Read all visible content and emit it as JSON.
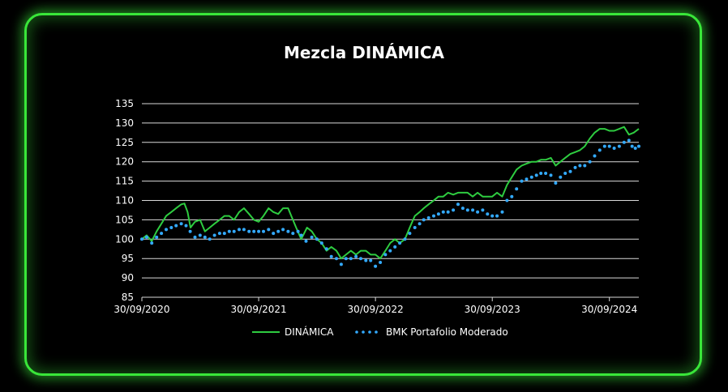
{
  "chart_data": {
    "type": "line",
    "title": "Mezcla DINÁMICA",
    "xlabel": "",
    "ylabel": "",
    "ylim": [
      85,
      135
    ],
    "yticks": [
      85,
      90,
      95,
      100,
      105,
      110,
      115,
      120,
      125,
      130,
      135
    ],
    "xlim": [
      "2020-09-30",
      "2024-12-31"
    ],
    "xticks": [
      "30/09/2020",
      "30/09/2021",
      "30/09/2022",
      "30/09/2023",
      "30/09/2024"
    ],
    "grid": "horizontal",
    "legend": "bottom",
    "series": [
      {
        "name": "DINÁMICA",
        "style": "solid-line",
        "color": "#2ecc40",
        "points": [
          [
            "2020-09-30",
            100
          ],
          [
            "2020-10-15",
            101
          ],
          [
            "2020-10-31",
            99.5
          ],
          [
            "2020-11-15",
            102
          ],
          [
            "2020-11-30",
            104
          ],
          [
            "2020-12-15",
            106
          ],
          [
            "2020-12-31",
            107
          ],
          [
            "2021-01-15",
            108
          ],
          [
            "2021-01-31",
            109
          ],
          [
            "2021-02-10",
            109.2
          ],
          [
            "2021-02-20",
            107
          ],
          [
            "2021-03-01",
            103
          ],
          [
            "2021-03-15",
            104.5
          ],
          [
            "2021-03-31",
            105
          ],
          [
            "2021-04-15",
            102
          ],
          [
            "2021-04-30",
            103
          ],
          [
            "2021-05-15",
            104
          ],
          [
            "2021-05-31",
            105
          ],
          [
            "2021-06-15",
            106
          ],
          [
            "2021-06-30",
            106
          ],
          [
            "2021-07-15",
            105
          ],
          [
            "2021-07-31",
            107
          ],
          [
            "2021-08-15",
            108
          ],
          [
            "2021-08-31",
            106.5
          ],
          [
            "2021-09-15",
            105
          ],
          [
            "2021-09-30",
            104.5
          ],
          [
            "2021-10-15",
            106
          ],
          [
            "2021-10-31",
            108
          ],
          [
            "2021-11-15",
            107
          ],
          [
            "2021-11-30",
            106.5
          ],
          [
            "2021-12-15",
            108
          ],
          [
            "2021-12-31",
            108
          ],
          [
            "2022-01-10",
            106
          ],
          [
            "2022-01-25",
            103
          ],
          [
            "2022-02-10",
            100
          ],
          [
            "2022-02-28",
            103
          ],
          [
            "2022-03-15",
            102
          ],
          [
            "2022-03-31",
            100
          ],
          [
            "2022-04-15",
            99
          ],
          [
            "2022-04-30",
            97
          ],
          [
            "2022-05-15",
            98
          ],
          [
            "2022-05-31",
            97
          ],
          [
            "2022-06-15",
            95
          ],
          [
            "2022-06-30",
            96
          ],
          [
            "2022-07-15",
            97
          ],
          [
            "2022-07-31",
            96
          ],
          [
            "2022-08-15",
            97
          ],
          [
            "2022-08-31",
            97
          ],
          [
            "2022-09-15",
            96
          ],
          [
            "2022-09-30",
            96
          ],
          [
            "2022-10-15",
            95
          ],
          [
            "2022-10-31",
            97
          ],
          [
            "2022-11-15",
            99
          ],
          [
            "2022-11-30",
            100
          ],
          [
            "2022-12-15",
            99
          ],
          [
            "2022-12-31",
            100
          ],
          [
            "2023-01-15",
            103
          ],
          [
            "2023-01-31",
            106
          ],
          [
            "2023-02-15",
            107
          ],
          [
            "2023-02-28",
            108
          ],
          [
            "2023-03-15",
            109
          ],
          [
            "2023-03-31",
            110
          ],
          [
            "2023-04-15",
            111
          ],
          [
            "2023-04-30",
            111
          ],
          [
            "2023-05-15",
            112
          ],
          [
            "2023-05-31",
            111.5
          ],
          [
            "2023-06-15",
            112
          ],
          [
            "2023-06-30",
            112
          ],
          [
            "2023-07-15",
            112
          ],
          [
            "2023-07-31",
            111
          ],
          [
            "2023-08-15",
            112
          ],
          [
            "2023-08-31",
            111
          ],
          [
            "2023-09-15",
            111
          ],
          [
            "2023-09-30",
            111
          ],
          [
            "2023-10-15",
            112
          ],
          [
            "2023-10-31",
            111
          ],
          [
            "2023-11-15",
            114
          ],
          [
            "2023-11-30",
            116
          ],
          [
            "2023-12-15",
            118
          ],
          [
            "2023-12-31",
            119
          ],
          [
            "2024-01-15",
            119.5
          ],
          [
            "2024-01-31",
            120
          ],
          [
            "2024-02-15",
            120
          ],
          [
            "2024-02-29",
            120.5
          ],
          [
            "2024-03-15",
            120.5
          ],
          [
            "2024-03-31",
            121
          ],
          [
            "2024-04-15",
            119
          ],
          [
            "2024-04-30",
            120
          ],
          [
            "2024-05-15",
            121
          ],
          [
            "2024-05-31",
            122
          ],
          [
            "2024-06-15",
            122.5
          ],
          [
            "2024-06-30",
            123
          ],
          [
            "2024-07-15",
            124
          ],
          [
            "2024-07-31",
            126
          ],
          [
            "2024-08-15",
            127.5
          ],
          [
            "2024-08-31",
            128.5
          ],
          [
            "2024-09-15",
            128.5
          ],
          [
            "2024-09-30",
            128
          ],
          [
            "2024-10-15",
            128
          ],
          [
            "2024-10-31",
            128.5
          ],
          [
            "2024-11-15",
            129
          ],
          [
            "2024-11-30",
            127
          ],
          [
            "2024-12-15",
            127.5
          ],
          [
            "2024-12-31",
            128.5
          ]
        ]
      },
      {
        "name": "BMK Portafolio Moderado",
        "style": "dotted",
        "color": "#33aaff",
        "points": [
          [
            "2020-09-30",
            100
          ],
          [
            "2020-10-15",
            100.5
          ],
          [
            "2020-10-31",
            99
          ],
          [
            "2020-11-15",
            100.5
          ],
          [
            "2020-11-30",
            101.5
          ],
          [
            "2020-12-15",
            102.5
          ],
          [
            "2020-12-31",
            103
          ],
          [
            "2021-01-15",
            103.5
          ],
          [
            "2021-01-31",
            104
          ],
          [
            "2021-02-15",
            103.5
          ],
          [
            "2021-02-28",
            102
          ],
          [
            "2021-03-15",
            100.5
          ],
          [
            "2021-03-31",
            101
          ],
          [
            "2021-04-15",
            100.5
          ],
          [
            "2021-04-30",
            100
          ],
          [
            "2021-05-15",
            101
          ],
          [
            "2021-05-31",
            101.5
          ],
          [
            "2021-06-15",
            101.5
          ],
          [
            "2021-06-30",
            102
          ],
          [
            "2021-07-15",
            102
          ],
          [
            "2021-07-31",
            102.5
          ],
          [
            "2021-08-15",
            102.5
          ],
          [
            "2021-08-31",
            102
          ],
          [
            "2021-09-15",
            102
          ],
          [
            "2021-09-30",
            102
          ],
          [
            "2021-10-15",
            102
          ],
          [
            "2021-10-31",
            102.5
          ],
          [
            "2021-11-15",
            101.5
          ],
          [
            "2021-11-30",
            102
          ],
          [
            "2021-12-15",
            102.5
          ],
          [
            "2021-12-31",
            102
          ],
          [
            "2022-01-15",
            101.5
          ],
          [
            "2022-01-31",
            102
          ],
          [
            "2022-02-10",
            101
          ],
          [
            "2022-02-25",
            99.5
          ],
          [
            "2022-03-15",
            100.5
          ],
          [
            "2022-03-31",
            100
          ],
          [
            "2022-04-15",
            99
          ],
          [
            "2022-04-30",
            97.5
          ],
          [
            "2022-05-15",
            95.5
          ],
          [
            "2022-05-31",
            95
          ],
          [
            "2022-06-15",
            93.5
          ],
          [
            "2022-06-30",
            95
          ],
          [
            "2022-07-15",
            95
          ],
          [
            "2022-07-31",
            95.5
          ],
          [
            "2022-08-15",
            95
          ],
          [
            "2022-08-31",
            94.5
          ],
          [
            "2022-09-15",
            94.5
          ],
          [
            "2022-09-30",
            93
          ],
          [
            "2022-10-15",
            94
          ],
          [
            "2022-10-31",
            96
          ],
          [
            "2022-11-15",
            97
          ],
          [
            "2022-11-30",
            98
          ],
          [
            "2022-12-15",
            99
          ],
          [
            "2022-12-31",
            100
          ],
          [
            "2023-01-15",
            101.5
          ],
          [
            "2023-01-31",
            103
          ],
          [
            "2023-02-15",
            104
          ],
          [
            "2023-02-28",
            105
          ],
          [
            "2023-03-15",
            105.5
          ],
          [
            "2023-03-31",
            106
          ],
          [
            "2023-04-15",
            106.5
          ],
          [
            "2023-04-30",
            107
          ],
          [
            "2023-05-15",
            107
          ],
          [
            "2023-05-31",
            107.5
          ],
          [
            "2023-06-15",
            109
          ],
          [
            "2023-06-30",
            108
          ],
          [
            "2023-07-15",
            107.5
          ],
          [
            "2023-07-31",
            107.5
          ],
          [
            "2023-08-15",
            107
          ],
          [
            "2023-08-31",
            107.5
          ],
          [
            "2023-09-15",
            106.5
          ],
          [
            "2023-09-30",
            106
          ],
          [
            "2023-10-15",
            106
          ],
          [
            "2023-10-31",
            107
          ],
          [
            "2023-11-15",
            110
          ],
          [
            "2023-11-30",
            111
          ],
          [
            "2023-12-15",
            113
          ],
          [
            "2023-12-31",
            115
          ],
          [
            "2024-01-15",
            115.5
          ],
          [
            "2024-01-31",
            116
          ],
          [
            "2024-02-15",
            116.5
          ],
          [
            "2024-02-29",
            117
          ],
          [
            "2024-03-15",
            117
          ],
          [
            "2024-03-31",
            116.5
          ],
          [
            "2024-04-15",
            114.5
          ],
          [
            "2024-04-30",
            116
          ],
          [
            "2024-05-15",
            117
          ],
          [
            "2024-05-31",
            117.5
          ],
          [
            "2024-06-15",
            118.5
          ],
          [
            "2024-06-30",
            119
          ],
          [
            "2024-07-15",
            119
          ],
          [
            "2024-07-31",
            120
          ],
          [
            "2024-08-15",
            121.5
          ],
          [
            "2024-08-31",
            123
          ],
          [
            "2024-09-15",
            124
          ],
          [
            "2024-09-30",
            124
          ],
          [
            "2024-10-15",
            123.5
          ],
          [
            "2024-10-31",
            124
          ],
          [
            "2024-11-15",
            125
          ],
          [
            "2024-11-30",
            125.5
          ],
          [
            "2024-12-10",
            124
          ],
          [
            "2024-12-20",
            123.5
          ],
          [
            "2024-12-31",
            124
          ]
        ]
      }
    ]
  },
  "frame": {
    "border_color": "#39e639",
    "background": "#000000"
  }
}
